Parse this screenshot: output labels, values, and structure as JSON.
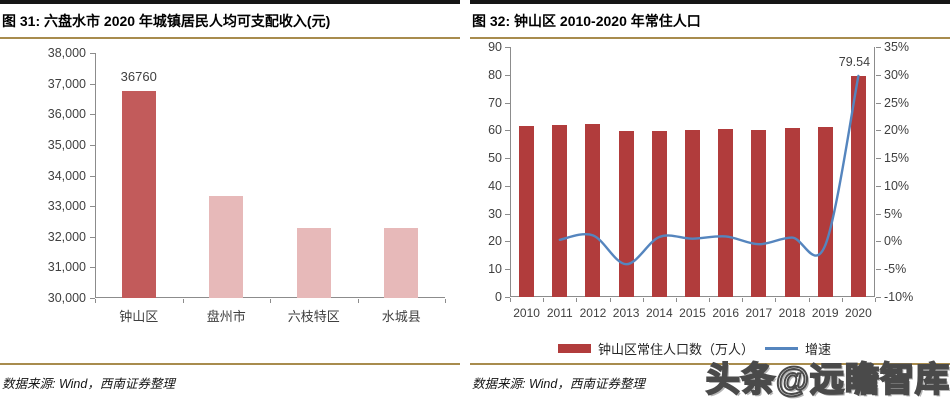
{
  "page": {
    "watermark": "头条@远瞻智库"
  },
  "figures": [
    {
      "header": "图 31:  六盘水市 2020 年城镇居民人均可支配收入(元)",
      "source": "数据来源: Wind，西南证券整理"
    },
    {
      "header": "图 32:  钟山区 2010-2020 年常住人口",
      "source": "数据来源: Wind，西南证券整理"
    }
  ],
  "chart_data": [
    {
      "type": "bar",
      "title": "六盘水市 2020 年城镇居民人均可支配收入(元)",
      "categories": [
        "钟山区",
        "盘州市",
        "六枝特区",
        "水城县"
      ],
      "values": [
        36760,
        33330,
        32300,
        32290
      ],
      "bar_colors": [
        "#c25b5b",
        "#e7b9b9",
        "#e7b9b9",
        "#e7b9b9"
      ],
      "data_labels": [
        "36760",
        "",
        "",
        ""
      ],
      "ylim": [
        30000,
        38000
      ],
      "ytick_step": 1000,
      "yticks": [
        "38,000",
        "37,000",
        "36,000",
        "35,000",
        "34,000",
        "33,000",
        "32,000",
        "31,000",
        "30,000"
      ],
      "grid": false,
      "legend_position": "none"
    },
    {
      "type": "bar+line",
      "title": "钟山区 2010-2020 年常住人口",
      "categories": [
        "2010",
        "2011",
        "2012",
        "2013",
        "2014",
        "2015",
        "2016",
        "2017",
        "2018",
        "2019",
        "2020"
      ],
      "series": [
        {
          "name": "钟山区常住人口数（万人）",
          "type": "bar",
          "axis": "left",
          "values": [
            61.6,
            61.9,
            62.2,
            59.6,
            59.9,
            60.3,
            60.6,
            60.2,
            61.0,
            61.2,
            79.54
          ],
          "color": "#b13c3c"
        },
        {
          "name": "增速",
          "type": "line",
          "axis": "right",
          "values": [
            null,
            0.3,
            1.1,
            -4.1,
            0.8,
            0.5,
            0.9,
            -0.5,
            0.7,
            -0.7,
            29.8
          ],
          "color": "#5585be"
        }
      ],
      "data_labels": [
        {
          "series": 0,
          "index": 10,
          "text": "79.54"
        }
      ],
      "left_ylim": [
        0,
        90
      ],
      "left_yticks": [
        "90",
        "80",
        "70",
        "60",
        "50",
        "40",
        "30",
        "20",
        "10",
        "0"
      ],
      "right_ylim": [
        -10,
        35
      ],
      "right_yticks": [
        "35%",
        "30%",
        "25%",
        "20%",
        "15%",
        "10%",
        "5%",
        "0%",
        "-5%",
        "-10%"
      ],
      "grid": false,
      "legend_position": "bottom"
    }
  ],
  "colors": {
    "accent_gold": "#a88c4e",
    "dark_rule": "#161616",
    "axis_gray": "#8c8c8c",
    "bar_dark_red": "#b13c3c",
    "bar_medium_red": "#c25b5b",
    "bar_pink": "#e7b9b9",
    "line_blue": "#5585be"
  }
}
